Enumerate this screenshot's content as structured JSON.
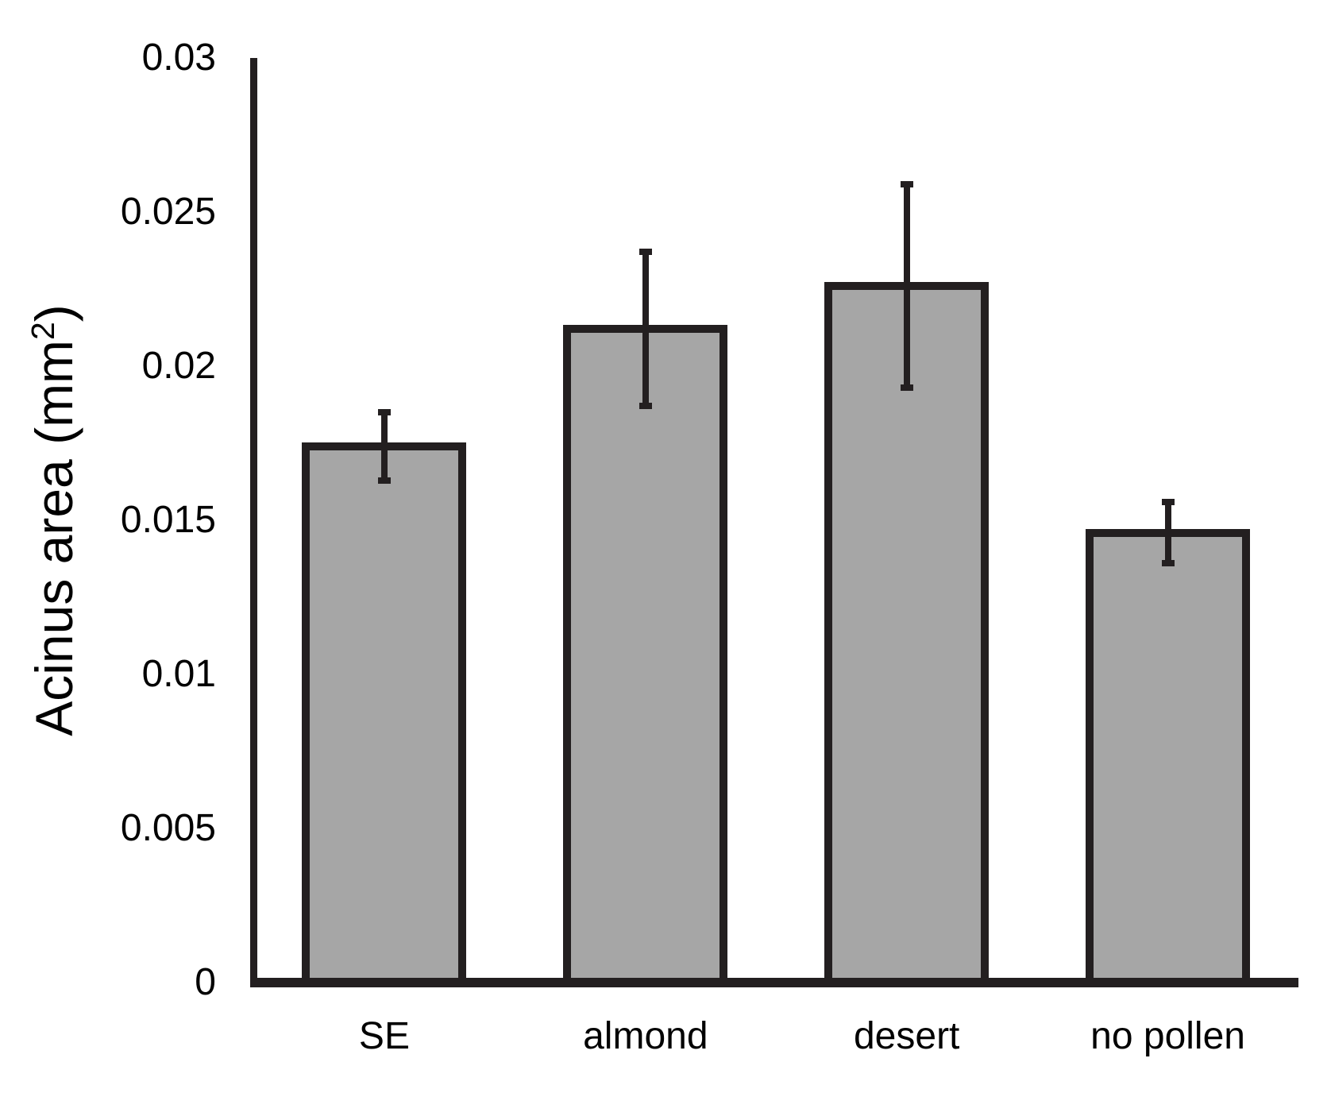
{
  "chart_data": {
    "type": "bar",
    "title": "",
    "categories": [
      "SE",
      "almond",
      "desert",
      "no pollen"
    ],
    "values": [
      0.0174,
      0.0212,
      0.0226,
      0.0146
    ],
    "error_bars": [
      0.0011,
      0.0025,
      0.0033,
      0.001
    ],
    "xlabel": "",
    "ylabel": "Acinus area (mm²)",
    "ylabel_parts": {
      "pre": "Acinus area (mm",
      "sup": "2",
      "post": ")"
    },
    "ylim": [
      0,
      0.03
    ],
    "ytick_values": [
      0,
      0.005,
      0.01,
      0.015,
      0.02,
      0.025,
      0.03
    ],
    "ytick_labels": [
      "0",
      "0.005",
      "0.01",
      "0.015",
      "0.02",
      "0.025",
      "0.03"
    ],
    "grid": false,
    "legend": null,
    "colors": {
      "bar_fill": "#a6a6a6",
      "bar_stroke": "#231f20",
      "error_bar": "#231f20",
      "axis": "#231f20",
      "text": "#000000",
      "background": "#ffffff"
    }
  }
}
